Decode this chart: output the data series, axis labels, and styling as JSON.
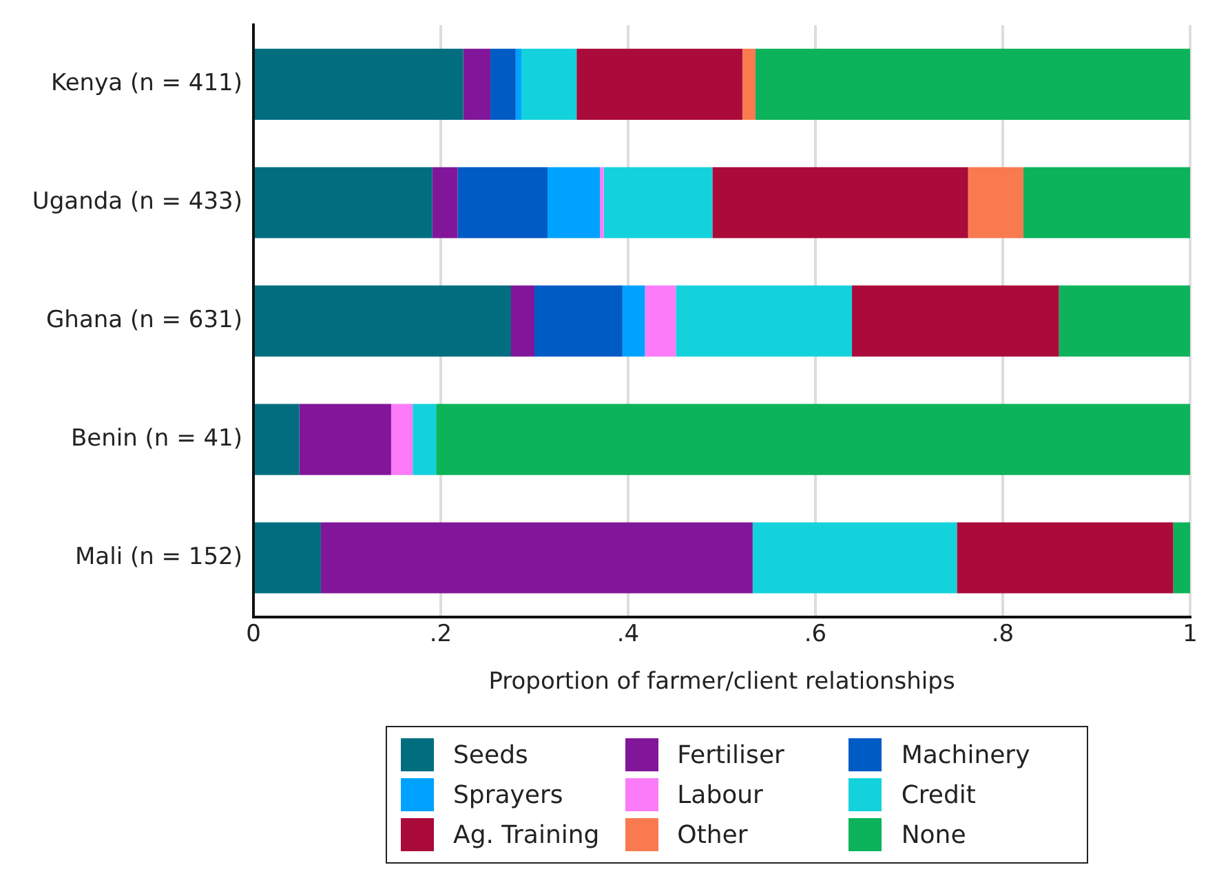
{
  "chart_data": {
    "type": "bar",
    "orientation": "horizontal",
    "stacked": true,
    "xlabel": "Proportion of farmer/client relationships",
    "categories": [
      "Kenya (n = 411)",
      "Uganda (n = 433)",
      "Ghana (n = 631)",
      "Benin (n = 41)",
      "Mali (n = 152)"
    ],
    "series": [
      {
        "name": "Seeds",
        "color": "#006e7f",
        "values": [
          0.224,
          0.191,
          0.275,
          0.049,
          0.072
        ]
      },
      {
        "name": "Fertiliser",
        "color": "#82169a",
        "values": [
          0.029,
          0.027,
          0.025,
          0.098,
          0.461
        ]
      },
      {
        "name": "Machinery",
        "color": "#005bc4",
        "values": [
          0.027,
          0.096,
          0.094,
          0,
          0
        ]
      },
      {
        "name": "Sprayers",
        "color": "#00a2ff",
        "values": [
          0.006,
          0.056,
          0.024,
          0,
          0
        ]
      },
      {
        "name": "Labour",
        "color": "#fb7bf9",
        "values": [
          0,
          0.004,
          0.033,
          0.023,
          0
        ]
      },
      {
        "name": "Credit",
        "color": "#14d2dc",
        "values": [
          0.059,
          0.116,
          0.188,
          0.025,
          0.218
        ]
      },
      {
        "name": "Ag. Training",
        "color": "#aa0b3a",
        "values": [
          0.177,
          0.273,
          0.221,
          0,
          0.231
        ]
      },
      {
        "name": "Other",
        "color": "#fa7a50",
        "values": [
          0.014,
          0.059,
          0,
          0,
          0
        ]
      },
      {
        "name": "None",
        "color": "#0cb35a",
        "values": [
          0.464,
          0.178,
          0.14,
          0.805,
          0.018
        ]
      }
    ],
    "xlim": [
      0,
      1
    ],
    "xticks": [
      0,
      {
        "value": 0.2,
        "label": ".2"
      },
      {
        "value": 0.4,
        "label": ".4"
      },
      {
        "value": 0.6,
        "label": ".6"
      },
      {
        "value": 0.8,
        "label": ".8"
      },
      1
    ],
    "grid": "x",
    "legend": "bottom"
  }
}
